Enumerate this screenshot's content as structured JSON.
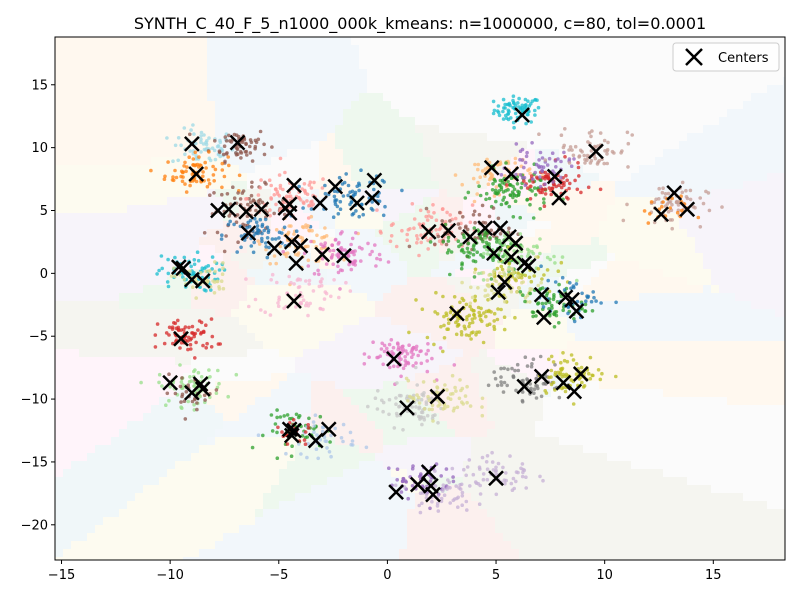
{
  "chart_data": {
    "type": "scatter",
    "title": "SYNTH_C_40_F_5_n1000_000k_kmeans: n=1000000, c=80, tol=0.0001",
    "xlabel": "",
    "ylabel": "",
    "xlim": [
      -15.3,
      18.3
    ],
    "ylim": [
      -22.8,
      18.8
    ],
    "x_ticks": [
      -15,
      -10,
      -5,
      0,
      5,
      10,
      15
    ],
    "y_ticks": [
      -20,
      -15,
      -10,
      -5,
      0,
      5,
      10,
      15
    ],
    "grid": false,
    "legend": {
      "position": "top-right",
      "entries": [
        "Centers"
      ]
    },
    "background": "voronoi regions of the cluster centers (pale pastel fills)",
    "cluster_colors": [
      "#1f77b4",
      "#ff7f0e",
      "#2ca02c",
      "#d62728",
      "#9467bd",
      "#8c564b",
      "#e377c2",
      "#7f7f7f",
      "#bcbd22",
      "#17becf",
      "#aec7e8",
      "#ffbb78",
      "#98df8a",
      "#ff9896",
      "#c5b0d5",
      "#c49c94",
      "#f7b6d2",
      "#c7c7c7",
      "#dbdb8d",
      "#9edae5"
    ],
    "point_clusters": [
      {
        "center": [
          6.0,
          13.0
        ],
        "spread": 0.9,
        "color": "#17becf",
        "n": 70
      },
      {
        "center": [
          -8.5,
          10.0
        ],
        "spread": 1.2,
        "color": "#9edae5",
        "n": 60
      },
      {
        "center": [
          -6.8,
          10.3
        ],
        "spread": 1.1,
        "color": "#8c564b",
        "n": 60
      },
      {
        "center": [
          -8.8,
          8.0
        ],
        "spread": 1.2,
        "color": "#ff7f0e",
        "n": 70
      },
      {
        "center": [
          -6.5,
          5.0
        ],
        "spread": 1.6,
        "color": "#8c564b",
        "n": 70
      },
      {
        "center": [
          -4.5,
          6.0
        ],
        "spread": 1.6,
        "color": "#ff9896",
        "n": 80
      },
      {
        "center": [
          -1.5,
          6.0
        ],
        "spread": 1.5,
        "color": "#1f77b4",
        "n": 70
      },
      {
        "center": [
          -4.0,
          2.5
        ],
        "spread": 1.4,
        "color": "#ffbb78",
        "n": 70
      },
      {
        "center": [
          -6.0,
          3.0
        ],
        "spread": 1.3,
        "color": "#1f77b4",
        "n": 60
      },
      {
        "center": [
          -2.0,
          1.5
        ],
        "spread": 1.6,
        "color": "#e377c2",
        "n": 80
      },
      {
        "center": [
          -4.0,
          -1.5
        ],
        "spread": 1.6,
        "color": "#f7b6d2",
        "n": 60
      },
      {
        "center": [
          -9.2,
          0.0
        ],
        "spread": 1.2,
        "color": "#17becf",
        "n": 70
      },
      {
        "center": [
          -8.5,
          -0.5
        ],
        "spread": 1.1,
        "color": "#dbdb8d",
        "n": 40
      },
      {
        "center": [
          -9.2,
          -5.0
        ],
        "spread": 1.1,
        "color": "#d62728",
        "n": 70
      },
      {
        "center": [
          -9.0,
          -9.0
        ],
        "spread": 1.3,
        "color": "#98df8a",
        "n": 60
      },
      {
        "center": [
          -9.0,
          -9.5
        ],
        "spread": 1.1,
        "color": "#8c564b",
        "n": 30
      },
      {
        "center": [
          -4.0,
          -12.5
        ],
        "spread": 1.3,
        "color": "#2ca02c",
        "n": 50
      },
      {
        "center": [
          -3.0,
          -13.0
        ],
        "spread": 1.3,
        "color": "#aec7e8",
        "n": 40
      },
      {
        "center": [
          -4.2,
          -12.8
        ],
        "spread": 0.8,
        "color": "#d62728",
        "n": 20
      },
      {
        "center": [
          5.0,
          8.0
        ],
        "spread": 1.3,
        "color": "#ffbb78",
        "n": 60
      },
      {
        "center": [
          5.8,
          6.5
        ],
        "spread": 1.4,
        "color": "#2ca02c",
        "n": 90
      },
      {
        "center": [
          7.5,
          7.0
        ],
        "spread": 1.3,
        "color": "#d62728",
        "n": 70
      },
      {
        "center": [
          7.0,
          8.5
        ],
        "spread": 1.2,
        "color": "#9467bd",
        "n": 50
      },
      {
        "center": [
          9.5,
          10.0
        ],
        "spread": 1.4,
        "color": "#c49c94",
        "n": 60
      },
      {
        "center": [
          13.0,
          5.5
        ],
        "spread": 1.4,
        "color": "#c49c94",
        "n": 60
      },
      {
        "center": [
          12.8,
          5.0
        ],
        "spread": 0.9,
        "color": "#ff7f0e",
        "n": 20
      },
      {
        "center": [
          2.0,
          3.5
        ],
        "spread": 1.6,
        "color": "#ff9896",
        "n": 80
      },
      {
        "center": [
          4.0,
          3.5
        ],
        "spread": 1.5,
        "color": "#8c564b",
        "n": 60
      },
      {
        "center": [
          4.5,
          2.0
        ],
        "spread": 1.6,
        "color": "#2ca02c",
        "n": 90
      },
      {
        "center": [
          6.0,
          1.5
        ],
        "spread": 1.6,
        "color": "#98df8a",
        "n": 70
      },
      {
        "center": [
          6.0,
          0.0
        ],
        "spread": 1.4,
        "color": "#bcbd22",
        "n": 50
      },
      {
        "center": [
          3.5,
          -3.5
        ],
        "spread": 1.5,
        "color": "#bcbd22",
        "n": 100
      },
      {
        "center": [
          5.5,
          -1.0
        ],
        "spread": 1.4,
        "color": "#dbdb8d",
        "n": 60
      },
      {
        "center": [
          7.5,
          -2.5
        ],
        "spread": 1.3,
        "color": "#2ca02c",
        "n": 60
      },
      {
        "center": [
          8.5,
          -2.0
        ],
        "spread": 1.2,
        "color": "#1f77b4",
        "n": 40
      },
      {
        "center": [
          0.5,
          -6.5
        ],
        "spread": 1.3,
        "color": "#e377c2",
        "n": 80
      },
      {
        "center": [
          1.0,
          -10.5
        ],
        "spread": 1.4,
        "color": "#c7c7c7",
        "n": 70
      },
      {
        "center": [
          2.5,
          -10.0
        ],
        "spread": 1.3,
        "color": "#dbdb8d",
        "n": 60
      },
      {
        "center": [
          6.5,
          -8.5
        ],
        "spread": 1.4,
        "color": "#7f7f7f",
        "n": 70
      },
      {
        "center": [
          8.5,
          -8.0
        ],
        "spread": 1.3,
        "color": "#bcbd22",
        "n": 70
      },
      {
        "center": [
          1.5,
          -16.5
        ],
        "spread": 1.2,
        "color": "#9467bd",
        "n": 50
      },
      {
        "center": [
          2.5,
          -17.5
        ],
        "spread": 1.2,
        "color": "#c5b0d5",
        "n": 50
      },
      {
        "center": [
          5.0,
          -16.0
        ],
        "spread": 1.4,
        "color": "#c5b0d5",
        "n": 60
      }
    ],
    "centers": [
      [
        6.2,
        12.6
      ],
      [
        -9.0,
        10.3
      ],
      [
        -6.9,
        10.4
      ],
      [
        -8.8,
        7.9
      ],
      [
        -7.8,
        5.0
      ],
      [
        -7.3,
        5.1
      ],
      [
        -6.5,
        4.9
      ],
      [
        -5.8,
        5.1
      ],
      [
        -4.5,
        4.8
      ],
      [
        -4.5,
        5.5
      ],
      [
        -4.3,
        7.0
      ],
      [
        -2.4,
        6.9
      ],
      [
        -3.1,
        5.6
      ],
      [
        -1.4,
        5.6
      ],
      [
        -0.7,
        6.0
      ],
      [
        -0.6,
        7.4
      ],
      [
        -6.4,
        3.2
      ],
      [
        -5.2,
        2.0
      ],
      [
        -4.4,
        2.5
      ],
      [
        -4.2,
        0.8
      ],
      [
        -4.0,
        2.2
      ],
      [
        -3.0,
        1.5
      ],
      [
        -2.0,
        1.4
      ],
      [
        -4.3,
        -2.2
      ],
      [
        -9.6,
        0.5
      ],
      [
        -9.0,
        -0.5
      ],
      [
        -8.5,
        -0.6
      ],
      [
        -9.5,
        -5.2
      ],
      [
        -10.0,
        -8.7
      ],
      [
        -9.0,
        -9.5
      ],
      [
        -8.6,
        -8.8
      ],
      [
        -8.5,
        -9.2
      ],
      [
        -4.5,
        -12.4
      ],
      [
        -4.4,
        -12.9
      ],
      [
        -4.3,
        -12.5
      ],
      [
        -3.3,
        -13.3
      ],
      [
        -2.7,
        -12.4
      ],
      [
        4.8,
        8.4
      ],
      [
        5.7,
        7.9
      ],
      [
        7.7,
        7.7
      ],
      [
        9.6,
        9.7
      ],
      [
        7.9,
        6.0
      ],
      [
        13.2,
        6.4
      ],
      [
        12.6,
        4.7
      ],
      [
        13.8,
        5.1
      ],
      [
        1.9,
        3.3
      ],
      [
        2.8,
        3.4
      ],
      [
        3.8,
        2.9
      ],
      [
        4.5,
        3.6
      ],
      [
        5.2,
        3.6
      ],
      [
        5.6,
        2.9
      ],
      [
        5.9,
        2.4
      ],
      [
        4.9,
        1.6
      ],
      [
        5.7,
        1.3
      ],
      [
        6.3,
        0.8
      ],
      [
        6.5,
        0.6
      ],
      [
        3.2,
        -3.2
      ],
      [
        5.1,
        -1.5
      ],
      [
        5.4,
        -0.7
      ],
      [
        7.1,
        -1.7
      ],
      [
        8.2,
        -1.9
      ],
      [
        8.5,
        -2.1
      ],
      [
        8.7,
        -3.0
      ],
      [
        7.2,
        -3.5
      ],
      [
        0.3,
        -6.8
      ],
      [
        0.9,
        -10.7
      ],
      [
        2.3,
        -9.8
      ],
      [
        6.3,
        -9.0
      ],
      [
        7.1,
        -8.2
      ],
      [
        8.1,
        -8.7
      ],
      [
        8.6,
        -9.4
      ],
      [
        8.9,
        -8.0
      ],
      [
        0.4,
        -17.4
      ],
      [
        1.4,
        -16.8
      ],
      [
        1.9,
        -15.8
      ],
      [
        2.0,
        -16.9
      ],
      [
        2.1,
        -17.6
      ],
      [
        5.0,
        -16.3
      ],
      [
        -9.4,
        0.4
      ],
      [
        -4.7,
        5.2
      ]
    ]
  }
}
